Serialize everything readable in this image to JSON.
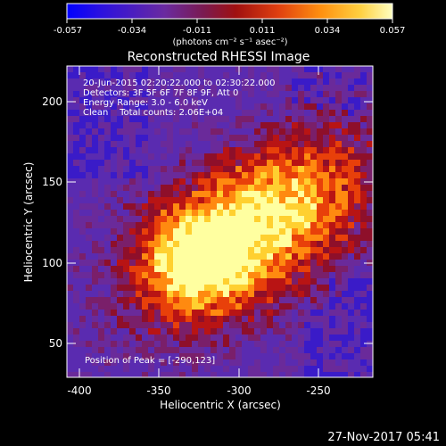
{
  "colorbar": {
    "tick_labels": [
      "-0.057",
      "-0.034",
      "-0.011",
      "0.011",
      "0.034",
      "0.057"
    ],
    "units_label": "(photons cm⁻² s⁻¹ asec⁻²)"
  },
  "plot": {
    "title": "Reconstructed RHESSI Image",
    "xlabel": "Heliocentric X (arcsec)",
    "ylabel": "Heliocentric Y (arcsec)",
    "x_ticks": [
      "-400",
      "-350",
      "-300",
      "-250"
    ],
    "y_ticks": [
      "50",
      "100",
      "150",
      "200"
    ],
    "info_lines": [
      "20-Jun-2015 02:20:22.000 to 02:30:22.000",
      "Detectors: 3F 5F 6F 7F 8F 9F, Att 0",
      "Energy Range: 3.0 - 6.0 keV",
      "Clean    Total counts: 2.06E+04"
    ],
    "peak_text": "Position of Peak = [-290,123]"
  },
  "footer": {
    "timestamp": "27-Nov-2017 05:41"
  },
  "image": {
    "x_range": [
      -410,
      -217
    ],
    "y_range": [
      29,
      221
    ],
    "peak": [
      -290,
      123
    ],
    "colors": {
      "cmap": [
        "#0000ff",
        "#3a1bc8",
        "#5a2bb0",
        "#6a2a9a",
        "#7a1f6a",
        "#8e0f2a",
        "#b81414",
        "#e8400a",
        "#ff8a10",
        "#ffd030",
        "#ffffa0"
      ]
    }
  }
}
